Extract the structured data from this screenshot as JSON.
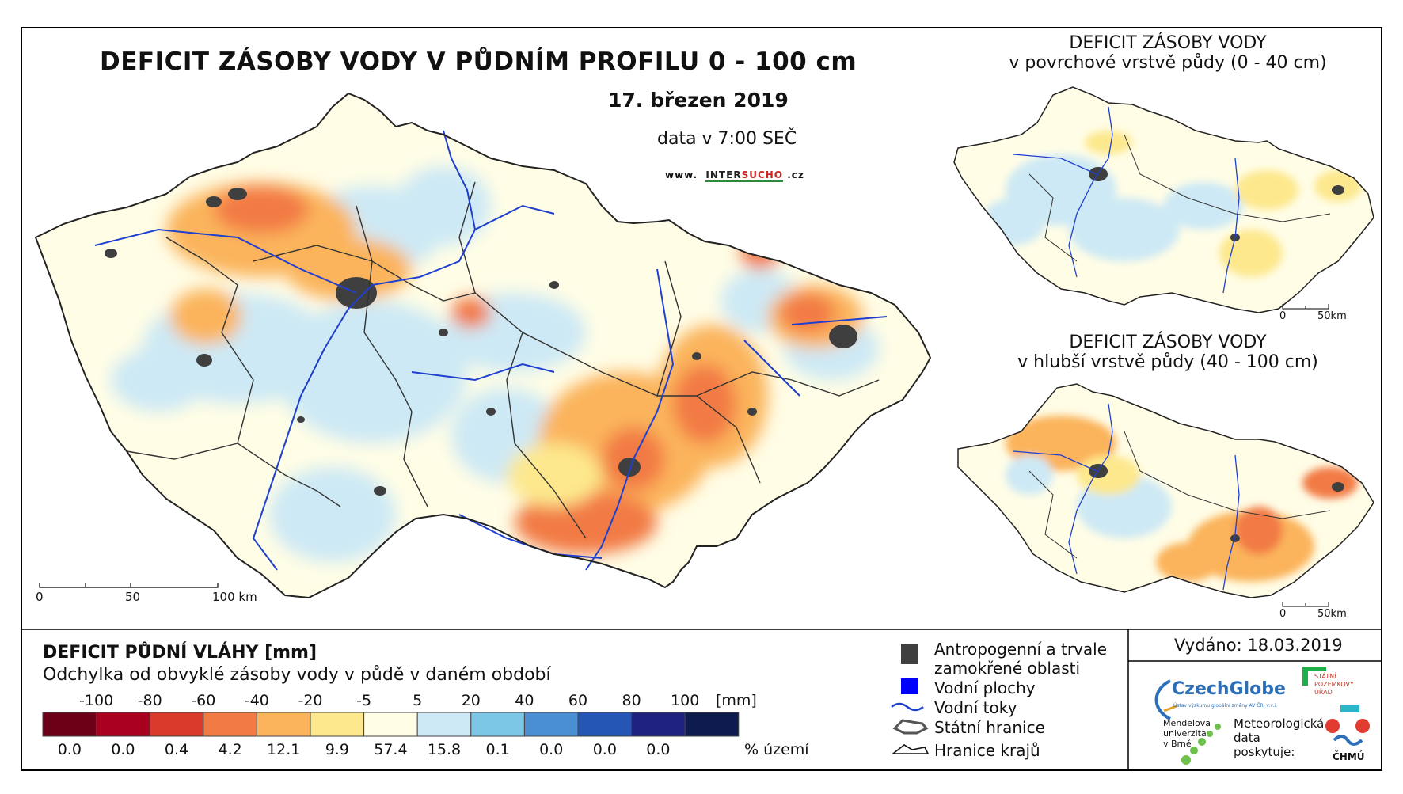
{
  "main_map": {
    "title": "DEFICIT ZÁSOBY VODY V PŮDNÍM PROFILU 0 - 100 cm",
    "date": "17. březen 2019",
    "time": "data v 7:00 SEČ",
    "website_prefix": "www.",
    "website_brand_a": "INTER",
    "website_brand_b": "SUCHO",
    "website_suffix": ".cz",
    "scale_labels": [
      "0",
      "50",
      "100 km"
    ]
  },
  "inset_top": {
    "title_line1": "DEFICIT ZÁSOBY VODY",
    "title_line2": "v povrchové vrstvě půdy (0 - 40 cm)",
    "scale_labels": [
      "0",
      "50km"
    ]
  },
  "inset_bottom": {
    "title_line1": "DEFICIT ZÁSOBY VODY",
    "title_line2": "v hlubší vrstvě půdy (40 - 100 cm)",
    "scale_labels": [
      "0",
      "50km"
    ]
  },
  "legend": {
    "title": "DEFICIT PŮDNÍ VLÁHY [mm]",
    "subtitle": "Odchylka od obvyklé zásoby vody v půdě v daném období",
    "tick_labels": [
      "-100",
      "-80",
      "-60",
      "-40",
      "-20",
      "-5",
      "5",
      "20",
      "40",
      "60",
      "80",
      "100"
    ],
    "unit": "[mm]",
    "bins": [
      {
        "color": "#6b0016",
        "percent": "0.0"
      },
      {
        "color": "#a8001e",
        "percent": "0.0"
      },
      {
        "color": "#d93a2b",
        "percent": "0.4"
      },
      {
        "color": "#f27a45",
        "percent": "4.2"
      },
      {
        "color": "#fbb45c",
        "percent": "12.1"
      },
      {
        "color": "#fde88d",
        "percent": "9.9"
      },
      {
        "color": "#fffde6",
        "percent": "57.4"
      },
      {
        "color": "#cde9f5",
        "percent": "15.8"
      },
      {
        "color": "#7cc6e6",
        "percent": "0.1"
      },
      {
        "color": "#4a8fd4",
        "percent": "0.0"
      },
      {
        "color": "#2556b5",
        "percent": "0.0"
      },
      {
        "color": "#1f237f",
        "percent": "0.0"
      },
      {
        "color": "#0d1b4d",
        "percent": ""
      }
    ],
    "percent_label": "% území"
  },
  "symbols": {
    "urban_line1": "Antropogenní a trvale",
    "urban_line2": "zamokřené oblasti",
    "water_bodies": "Vodní plochy",
    "rivers": "Vodní toky",
    "state_border": "Státní hranice",
    "region_border": "Hranice krajů"
  },
  "issued": "Vydáno: 18.03.2019",
  "logos": {
    "czechglobe": "CzechGlobe",
    "czechglobe_sub": "Ústav výzkumu globální změny AV ČR, v.v.i.",
    "spu_line1": "STÁTNÍ",
    "spu_line2": "POZEMKOVÝ",
    "spu_line3": "ÚŘAD",
    "mendel_line1": "Mendelova",
    "mendel_line2": "univerzita",
    "mendel_line3": "v Brně",
    "met_line1": "Meteorologická",
    "met_line2": "data",
    "met_line3": "poskytuje:",
    "chmu": "ČHMÚ"
  },
  "colors": {
    "urban": "#3f3f3f",
    "water": "#0000ff",
    "river": "#1f3fd0"
  }
}
